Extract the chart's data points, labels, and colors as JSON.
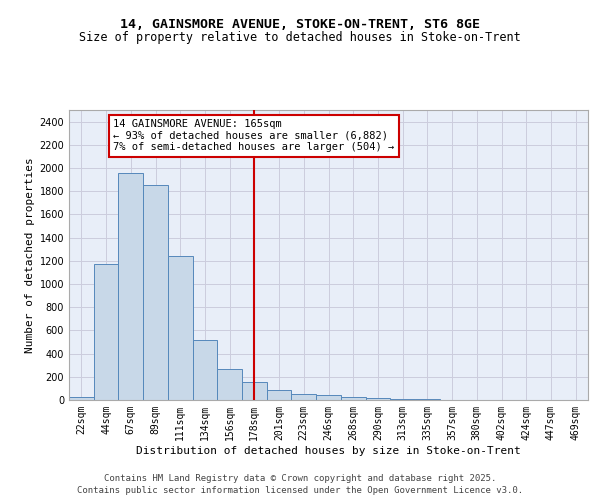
{
  "title1": "14, GAINSMORE AVENUE, STOKE-ON-TRENT, ST6 8GE",
  "title2": "Size of property relative to detached houses in Stoke-on-Trent",
  "xlabel": "Distribution of detached houses by size in Stoke-on-Trent",
  "ylabel": "Number of detached properties",
  "footer1": "Contains HM Land Registry data © Crown copyright and database right 2025.",
  "footer2": "Contains public sector information licensed under the Open Government Licence v3.0.",
  "bin_labels": [
    "22sqm",
    "44sqm",
    "67sqm",
    "89sqm",
    "111sqm",
    "134sqm",
    "156sqm",
    "178sqm",
    "201sqm",
    "223sqm",
    "246sqm",
    "268sqm",
    "290sqm",
    "313sqm",
    "335sqm",
    "357sqm",
    "380sqm",
    "402sqm",
    "424sqm",
    "447sqm",
    "469sqm"
  ],
  "bar_values": [
    30,
    1170,
    1960,
    1850,
    1240,
    515,
    270,
    155,
    90,
    48,
    40,
    25,
    20,
    10,
    5,
    3,
    2,
    2,
    1,
    1,
    1
  ],
  "bar_color": "#c8d8e8",
  "bar_edge_color": "#5588bb",
  "vline_x_index": 7,
  "annotation_text": "14 GAINSMORE AVENUE: 165sqm\n← 93% of detached houses are smaller (6,882)\n7% of semi-detached houses are larger (504) →",
  "annotation_box_color": "#ffffff",
  "annotation_box_edge": "#cc0000",
  "vline_color": "#cc0000",
  "ylim": [
    0,
    2500
  ],
  "yticks": [
    0,
    200,
    400,
    600,
    800,
    1000,
    1200,
    1400,
    1600,
    1800,
    2000,
    2200,
    2400
  ],
  "grid_color": "#ccccdd",
  "bg_color": "#e8eef8",
  "title1_fontsize": 9.5,
  "title2_fontsize": 8.5,
  "xlabel_fontsize": 8,
  "ylabel_fontsize": 8,
  "tick_fontsize": 7,
  "annotation_fontsize": 7.5,
  "footer_fontsize": 6.5
}
